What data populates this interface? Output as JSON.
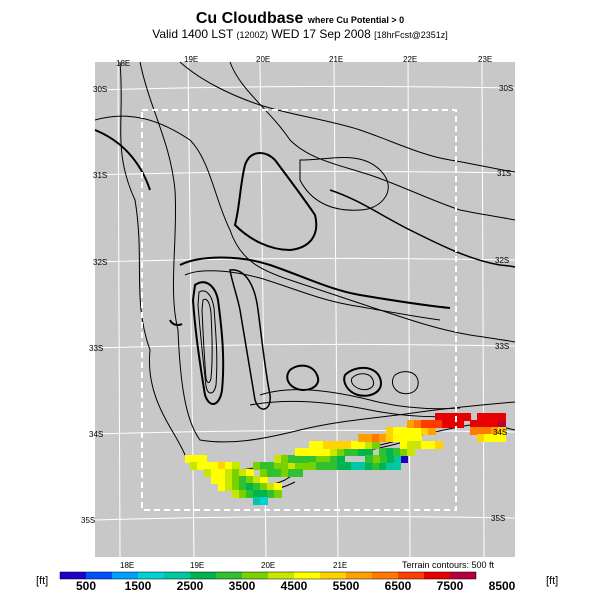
{
  "title": {
    "main": "Cu Cloudbase",
    "sub": "where Cu Potential > 0",
    "valid_prefix": "Valid 1400 LST",
    "valid_time_z": "(1200Z)",
    "valid_date": "WED 17 Sep 2008",
    "model_run": "[18hrFcst@2351z]"
  },
  "map": {
    "lon_labels_top": [
      "18E",
      "19E",
      "20E",
      "21E",
      "22E",
      "23E"
    ],
    "lon_labels_bottom": [
      "18E",
      "19E",
      "20E",
      "21E"
    ],
    "lat_labels_left": [
      "30S",
      "31S",
      "32S",
      "33S",
      "34S",
      "35S"
    ],
    "lat_labels_right": [
      "30S",
      "31S",
      "32S",
      "33S",
      "34S",
      "35S"
    ],
    "terrain_note": "Terrain contours: 500 ft",
    "background_color": "#c8c8c8",
    "grid_color": "#ffffff",
    "contour_color": "#000000"
  },
  "colorbar": {
    "unit_left": "[ft]",
    "unit_right": "[ft]",
    "tick_labels": [
      "500",
      "1500",
      "2500",
      "3500",
      "4500",
      "5500",
      "6500",
      "7500",
      "8500"
    ],
    "colors": [
      "#1e00c8",
      "#0050ff",
      "#00a0ff",
      "#00d2d2",
      "#00c8a0",
      "#00b450",
      "#30c030",
      "#78d200",
      "#c8e600",
      "#ffff00",
      "#ffd200",
      "#ffa000",
      "#ff7800",
      "#ff3c00",
      "#e60000",
      "#b4003c"
    ]
  }
}
